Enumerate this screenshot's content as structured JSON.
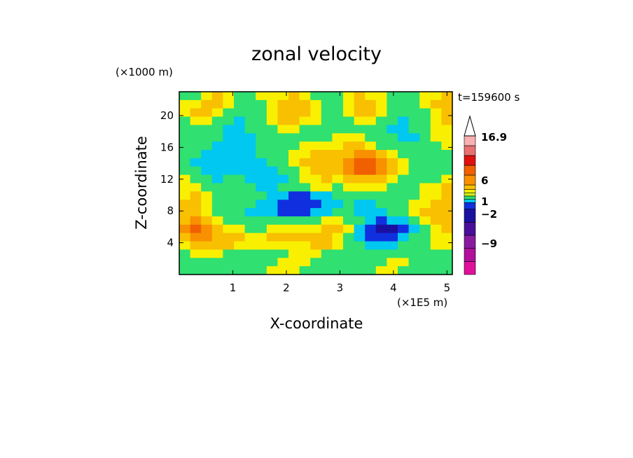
{
  "chart_data": {
    "type": "heatmap",
    "title": "zonal velocity",
    "xlabel": "X-coordinate",
    "ylabel": "Z-coordinate",
    "x_unit": "(×1E5 m)",
    "y_unit": "(×1000 m)",
    "timestamp": "t=159600 s",
    "xlim": [
      0,
      5.1
    ],
    "ylim": [
      0,
      23
    ],
    "x_ticks": [
      1,
      2,
      3,
      4,
      5
    ],
    "y_ticks": [
      4,
      8,
      12,
      16,
      20
    ],
    "colorbar": {
      "labels": [
        "16.9",
        "6",
        "1",
        "−2",
        "−9"
      ],
      "colors": [
        "#e0109a",
        "#b0109a",
        "#8a1aa0",
        "#4a0f9a",
        "#1a10a0",
        "#1030e0",
        "#00c8f0",
        "#30e070",
        "#d0f020",
        "#f8f000",
        "#f8c000",
        "#f89000",
        "#f06000",
        "#e01010",
        "#e87070",
        "#f8b0b0"
      ],
      "arrow_color": "#ffffff"
    },
    "field": [
      [
        1,
        1,
        2,
        3,
        2,
        1,
        1,
        2,
        2,
        2,
        3,
        2,
        1,
        1,
        1,
        2,
        3,
        2,
        2,
        1,
        1,
        1,
        2,
        2,
        3
      ],
      [
        2,
        2,
        3,
        3,
        2,
        1,
        1,
        1,
        2,
        3,
        3,
        3,
        2,
        1,
        1,
        2,
        3,
        3,
        2,
        1,
        0,
        1,
        2,
        3,
        3
      ],
      [
        2,
        3,
        3,
        2,
        1,
        0,
        0,
        1,
        2,
        3,
        3,
        3,
        2,
        1,
        1,
        2,
        3,
        3,
        2,
        1,
        0,
        0,
        1,
        2,
        3
      ],
      [
        1,
        2,
        2,
        1,
        0,
        -1,
        0,
        1,
        2,
        3,
        3,
        2,
        2,
        1,
        1,
        1,
        2,
        2,
        1,
        0,
        -1,
        0,
        1,
        2,
        3
      ],
      [
        1,
        1,
        1,
        0,
        -1,
        -1,
        0,
        1,
        1,
        2,
        2,
        1,
        1,
        1,
        1,
        1,
        1,
        1,
        0,
        -1,
        -1,
        0,
        1,
        2,
        2
      ],
      [
        1,
        1,
        0,
        0,
        -1,
        -2,
        -1,
        0,
        1,
        1,
        1,
        1,
        1,
        1,
        2,
        2,
        2,
        1,
        1,
        0,
        -1,
        -1,
        1,
        2,
        2
      ],
      [
        1,
        0,
        0,
        -1,
        -2,
        -2,
        -1,
        0,
        1,
        1,
        1,
        2,
        2,
        2,
        2,
        3,
        3,
        2,
        1,
        1,
        0,
        0,
        1,
        1,
        2
      ],
      [
        0,
        0,
        -1,
        -1,
        -2,
        -2,
        -1,
        0,
        0,
        1,
        2,
        2,
        3,
        3,
        3,
        3,
        4,
        4,
        3,
        2,
        1,
        1,
        1,
        1,
        1
      ],
      [
        0,
        -1,
        -1,
        -2,
        -2,
        -1,
        -1,
        -1,
        0,
        1,
        2,
        3,
        3,
        3,
        3,
        4,
        5,
        5,
        4,
        3,
        2,
        1,
        1,
        1,
        1
      ],
      [
        1,
        0,
        -1,
        -1,
        -1,
        -1,
        -2,
        -2,
        -1,
        0,
        1,
        2,
        3,
        3,
        3,
        4,
        5,
        5,
        4,
        3,
        2,
        1,
        1,
        0,
        1
      ],
      [
        2,
        1,
        0,
        -1,
        0,
        0,
        -1,
        -2,
        -2,
        -1,
        1,
        2,
        2,
        3,
        2,
        3,
        3,
        3,
        3,
        2,
        1,
        1,
        1,
        1,
        2
      ],
      [
        2,
        2,
        1,
        0,
        0,
        1,
        0,
        -1,
        -1,
        0,
        1,
        1,
        2,
        2,
        1,
        2,
        2,
        2,
        2,
        1,
        1,
        1,
        2,
        2,
        3
      ],
      [
        2,
        3,
        2,
        1,
        1,
        1,
        1,
        0,
        -1,
        -2,
        -3,
        -3,
        -2,
        -1,
        0,
        1,
        1,
        1,
        1,
        0,
        0,
        1,
        2,
        2,
        3
      ],
      [
        3,
        3,
        2,
        1,
        1,
        1,
        0,
        -1,
        -2,
        -3,
        -4,
        -4,
        -3,
        -2,
        -1,
        0,
        -1,
        -1,
        0,
        1,
        1,
        2,
        2,
        3,
        3
      ],
      [
        3,
        3,
        2,
        1,
        0,
        0,
        -1,
        -1,
        -2,
        -3,
        -3,
        -3,
        -2,
        -1,
        0,
        0,
        -1,
        -2,
        -1,
        0,
        1,
        2,
        3,
        3,
        3
      ],
      [
        3,
        4,
        3,
        2,
        1,
        1,
        0,
        0,
        1,
        1,
        1,
        1,
        1,
        2,
        2,
        1,
        0,
        -2,
        -3,
        -2,
        -1,
        1,
        2,
        3,
        3
      ],
      [
        4,
        5,
        4,
        3,
        2,
        2,
        1,
        1,
        2,
        2,
        2,
        2,
        2,
        3,
        3,
        2,
        -1,
        -3,
        -5,
        -5,
        -3,
        -1,
        1,
        2,
        3
      ],
      [
        3,
        4,
        4,
        3,
        3,
        3,
        2,
        2,
        3,
        3,
        3,
        3,
        3,
        3,
        2,
        1,
        -1,
        -3,
        -4,
        -4,
        -2,
        0,
        1,
        2,
        2
      ],
      [
        2,
        3,
        3,
        3,
        3,
        2,
        2,
        2,
        2,
        2,
        2,
        2,
        3,
        3,
        2,
        1,
        0,
        -1,
        -1,
        -1,
        0,
        1,
        1,
        2,
        2
      ],
      [
        1,
        2,
        2,
        2,
        1,
        1,
        1,
        1,
        1,
        1,
        2,
        2,
        2,
        1,
        1,
        1,
        1,
        1,
        1,
        1,
        1,
        1,
        1,
        1,
        1
      ],
      [
        1,
        1,
        1,
        1,
        1,
        1,
        1,
        1,
        1,
        2,
        2,
        2,
        1,
        1,
        1,
        1,
        1,
        1,
        1,
        2,
        2,
        1,
        1,
        1,
        1
      ],
      [
        1,
        1,
        1,
        1,
        1,
        1,
        1,
        1,
        2,
        2,
        2,
        1,
        1,
        1,
        1,
        1,
        1,
        1,
        2,
        2,
        1,
        1,
        1,
        1,
        1
      ]
    ]
  }
}
